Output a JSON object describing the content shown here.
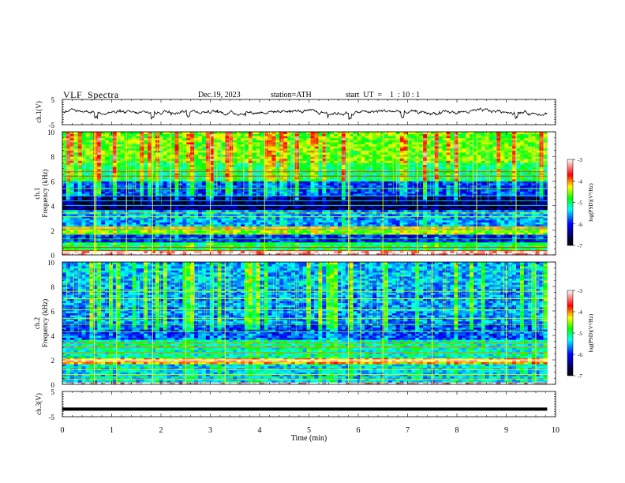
{
  "header": {
    "title": "VLF  Spectra",
    "date": "Dec.19, 2023",
    "station": "station=ATH",
    "start": "start  UT  =    1  : 10 : 1"
  },
  "chart_data": [
    {
      "type": "line",
      "panel": "ch1-waveform",
      "ylabel": "ch.1(V)",
      "ylim": [
        -5,
        5
      ],
      "yticks": [
        "5",
        "-5"
      ],
      "xlim": [
        0,
        10
      ],
      "trace_color": "#000000",
      "description_values": {
        "x_start": 0,
        "x_end": 9.83,
        "baseline_v": 0.0,
        "dips_min": [
          0.68,
          1.83,
          2.55,
          5.83,
          6.9,
          9.2
        ]
      }
    },
    {
      "type": "heatmap",
      "panel": "ch1-spectrogram",
      "ylabel_line1": "ch.1",
      "ylabel_line2": "Frequency  (kHz)",
      "ylim": [
        0,
        10
      ],
      "yticks": [
        "0",
        "2",
        "4",
        "6",
        "8",
        "10"
      ],
      "xlim": [
        0,
        10
      ],
      "data_x_end": 9.83,
      "colorbar": {
        "label": "log(PSD)(V²/Hz)",
        "range": [
          -7,
          -3
        ],
        "ticks": [
          "-3",
          "-4",
          "-5",
          "-6",
          "-7"
        ],
        "colors": [
          "#ffffff",
          "#ff0000",
          "#ffff00",
          "#00ff00",
          "#00ffff",
          "#0000ff",
          "#000040",
          "#000000"
        ]
      },
      "bands_khz": [
        {
          "from": 0.0,
          "to": 0.3,
          "level": -3.2
        },
        {
          "from": 0.3,
          "to": 1.0,
          "level": -5.0
        },
        {
          "from": 1.0,
          "to": 1.6,
          "level": -6.0
        },
        {
          "from": 1.6,
          "to": 2.4,
          "level": -4.6
        },
        {
          "from": 2.4,
          "to": 3.6,
          "level": -5.6
        },
        {
          "from": 3.6,
          "to": 4.9,
          "level": -6.6
        },
        {
          "from": 4.9,
          "to": 6.0,
          "level": -5.9
        },
        {
          "from": 6.0,
          "to": 7.5,
          "level": -5.0
        },
        {
          "from": 7.5,
          "to": 10.0,
          "level": -4.6
        }
      ],
      "lines_khz": [
        0.35,
        0.6,
        1.0,
        1.3,
        2.1,
        2.3,
        3.1,
        3.4,
        4.0,
        4.4,
        4.8,
        5.4,
        6.4,
        6.75
      ],
      "spikes_min": [
        0.65,
        0.68,
        1.83,
        1.3,
        2.2,
        3.0,
        4.1,
        5.8,
        5.83,
        6.5,
        7.2,
        8.4,
        9.2
      ]
    },
    {
      "type": "heatmap",
      "panel": "ch2-spectrogram",
      "ylabel_line1": "ch.2",
      "ylabel_line2": "Frequency  (kHz)",
      "ylim": [
        0,
        10
      ],
      "yticks": [
        "0",
        "2",
        "4",
        "6",
        "8",
        "10"
      ],
      "xlim": [
        0,
        10
      ],
      "data_x_end": 9.83,
      "colorbar": {
        "label": "log(PSD)(V²/Hz)",
        "range": [
          -7,
          -3
        ],
        "ticks": [
          "-3",
          "-4",
          "-5",
          "-6",
          "-7"
        ],
        "colors": [
          "#ffffff",
          "#ff0000",
          "#ffff00",
          "#00ff00",
          "#00ffff",
          "#0000ff",
          "#000040",
          "#000000"
        ]
      },
      "bands_khz": [
        {
          "from": 0.0,
          "to": 0.2,
          "level": -3.2
        },
        {
          "from": 0.2,
          "to": 1.7,
          "level": -5.4
        },
        {
          "from": 1.7,
          "to": 2.2,
          "level": -4.2
        },
        {
          "from": 2.2,
          "to": 3.6,
          "level": -5.2
        },
        {
          "from": 3.6,
          "to": 5.0,
          "level": -5.8
        },
        {
          "from": 5.0,
          "to": 8.0,
          "level": -5.6
        },
        {
          "from": 8.0,
          "to": 10.0,
          "level": -5.5
        }
      ],
      "lines_khz": [
        0.4,
        0.8,
        1.2,
        1.9,
        2.0,
        2.6,
        3.0,
        3.4,
        4.3,
        4.9,
        5.4,
        6.1,
        7.0,
        7.6
      ],
      "spikes_min": [
        0.65,
        1.1,
        1.83,
        2.5,
        3.3,
        5.8,
        6.05,
        6.5,
        7.5,
        9.0,
        9.6
      ]
    },
    {
      "type": "line",
      "panel": "ch3-waveform",
      "ylabel": "ch.3(V)",
      "ylim": [
        -5,
        5
      ],
      "yticks": [
        "5",
        "-5"
      ],
      "xlim": [
        0,
        10
      ],
      "trace_color": "#000000",
      "description_values": {
        "x_start": 0,
        "x_end": 9.83,
        "baseline_v": -2.0
      }
    },
    {
      "type": "axis",
      "xlabel": "Time  (min)",
      "xticks": [
        "0",
        "1",
        "2",
        "3",
        "4",
        "5",
        "6",
        "7",
        "8",
        "9",
        "10"
      ]
    }
  ]
}
